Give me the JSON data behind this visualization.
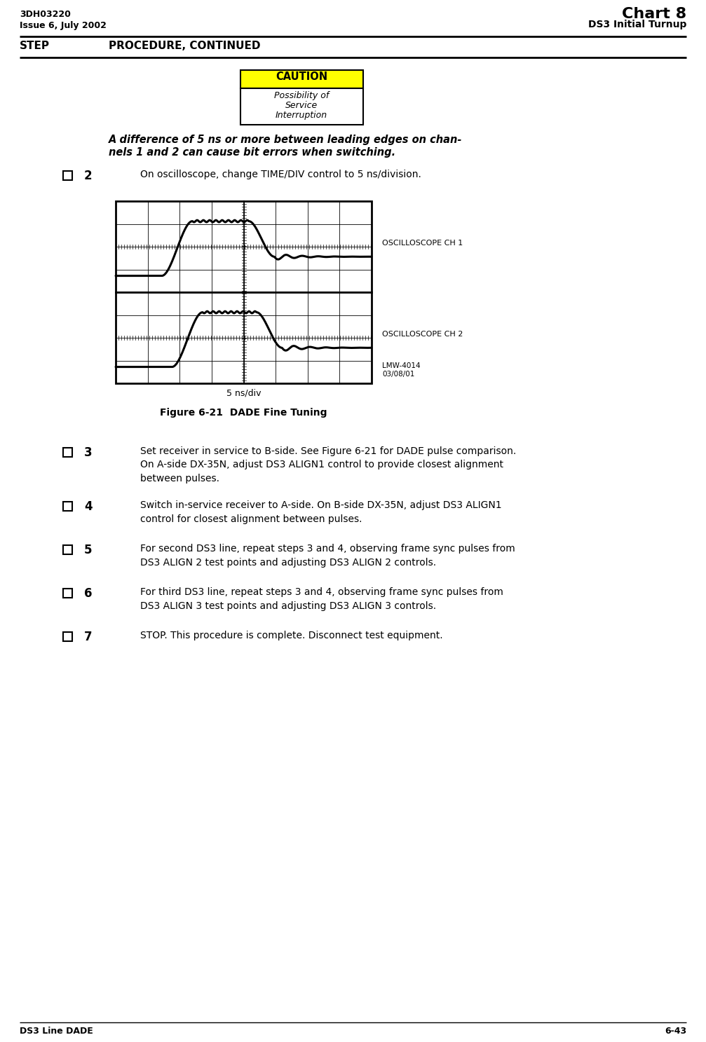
{
  "top_left_line1": "3DH03220",
  "top_left_line2": "Issue 6, July 2002",
  "top_right_line1": "Chart 8",
  "top_right_line2": "DS3 Initial Turnup",
  "header_step": "STEP",
  "header_procedure": "PROCEDURE, CONTINUED",
  "caution_title": "CAUTION",
  "caution_line1": "Possibility of",
  "caution_line2": "Service",
  "caution_line3": "Interruption",
  "bold_italic_line1": "A difference of 5 ns or more between leading edges on chan-",
  "bold_italic_line2": "nels 1 and 2 can cause bit errors when switching.",
  "step2_num": "2",
  "step2_text": "On oscilloscope, change TIME/DIV control to 5 ns/division.",
  "figure_caption": "Figure 6-21  DADE Fine Tuning",
  "osc_ch1_label": "OSCILLOSCOPE CH 1",
  "osc_ch2_label": "OSCILLOSCOPE CH 2",
  "xdiv_label": "5 ns/div",
  "lmw_label": "LMW-4014\n03/08/01",
  "step3_num": "3",
  "step3_text": "Set receiver in service to B-side. See Figure 6-21 for DADE pulse comparison.\nOn A-side DX-35N, adjust DS3 ALIGN1 control to provide closest alignment\nbetween pulses.",
  "step4_num": "4",
  "step4_text": "Switch in-service receiver to A-side. On B-side DX-35N, adjust DS3 ALIGN1\ncontrol for closest alignment between pulses.",
  "step5_num": "5",
  "step5_text": "For second DS3 line, repeat steps 3 and 4, observing frame sync pulses from\nDS3 ALIGN 2 test points and adjusting DS3 ALIGN 2 controls.",
  "step6_num": "6",
  "step6_text": "For third DS3 line, repeat steps 3 and 4, observing frame sync pulses from\nDS3 ALIGN 3 test points and adjusting DS3 ALIGN 3 controls.",
  "step7_num": "7",
  "step7_text": "STOP. This procedure is complete. Disconnect test equipment.",
  "bottom_left": "DS3 Line DADE",
  "bottom_right": "6-43",
  "bg_color": "#ffffff",
  "caution_bg": "#ffff00",
  "caution_border": "#000000"
}
